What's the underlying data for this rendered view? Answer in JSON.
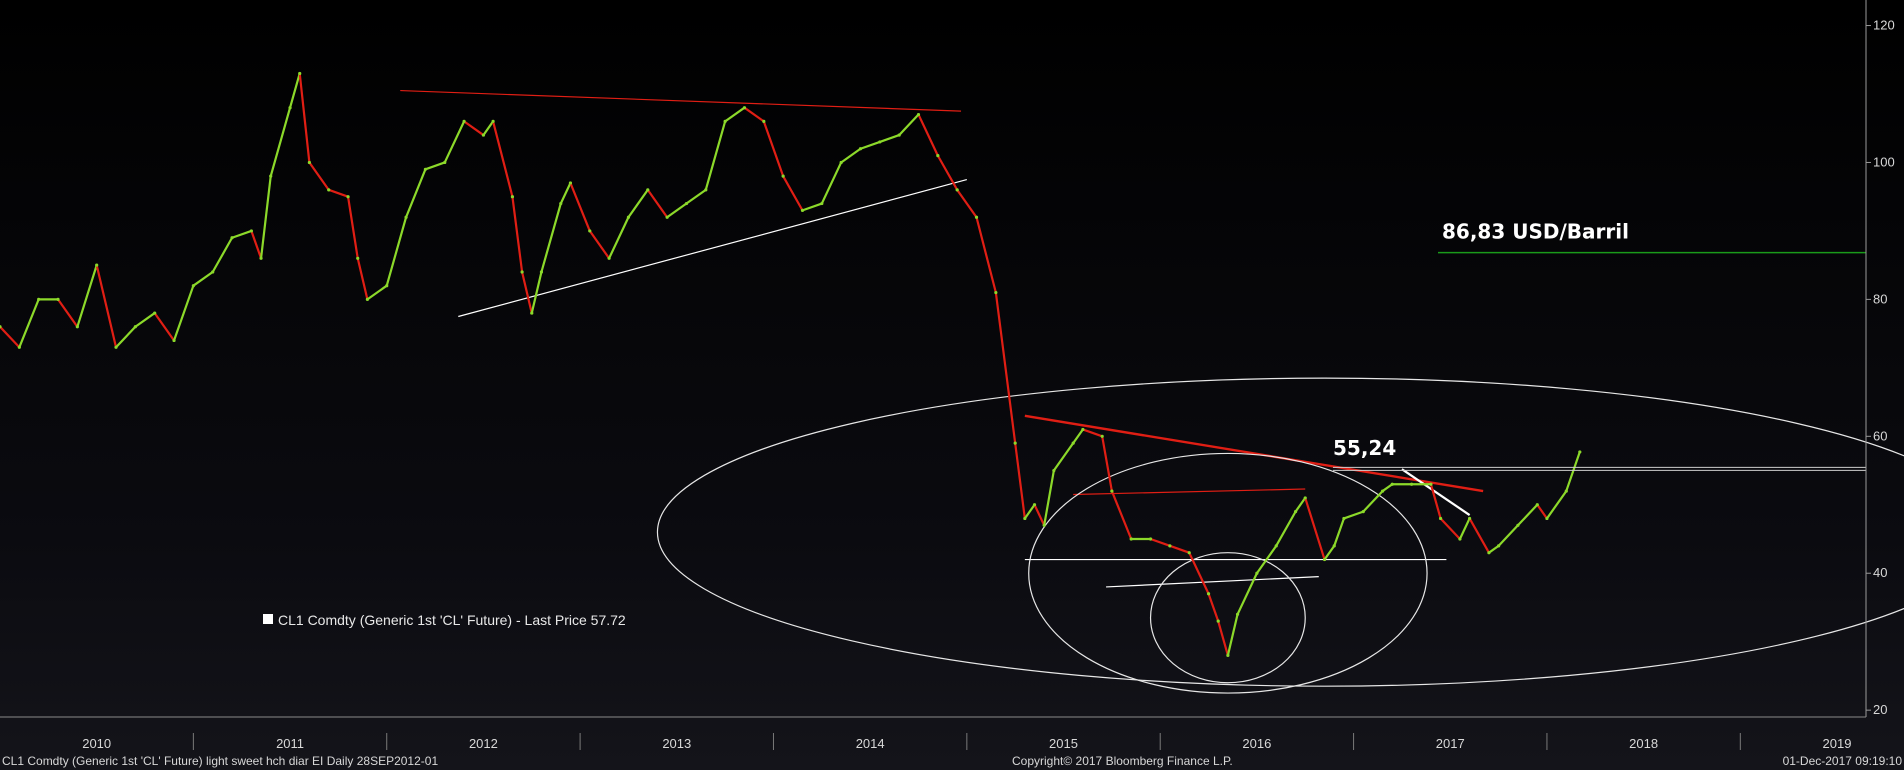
{
  "chart_data": {
    "type": "line",
    "title": "",
    "xlabel": "",
    "ylabel": "",
    "series": [
      {
        "name": "CL1 Comdty (Generic 1st 'CL' Future) - Last Price 57.72",
        "color": "#8cd92a",
        "down_color": "#e01e14",
        "points": [
          [
            2009.75,
            76
          ],
          [
            2009.85,
            73
          ],
          [
            2009.95,
            80
          ],
          [
            2010.05,
            80
          ],
          [
            2010.15,
            76
          ],
          [
            2010.25,
            85
          ],
          [
            2010.35,
            73
          ],
          [
            2010.45,
            76
          ],
          [
            2010.55,
            78
          ],
          [
            2010.65,
            74
          ],
          [
            2010.75,
            82
          ],
          [
            2010.85,
            84
          ],
          [
            2010.95,
            89
          ],
          [
            2011.05,
            90
          ],
          [
            2011.1,
            86
          ],
          [
            2011.15,
            98
          ],
          [
            2011.25,
            108
          ],
          [
            2011.3,
            113
          ],
          [
            2011.35,
            100
          ],
          [
            2011.45,
            96
          ],
          [
            2011.55,
            95
          ],
          [
            2011.6,
            86
          ],
          [
            2011.65,
            80
          ],
          [
            2011.75,
            82
          ],
          [
            2011.85,
            92
          ],
          [
            2011.95,
            99
          ],
          [
            2012.05,
            100
          ],
          [
            2012.15,
            106
          ],
          [
            2012.25,
            104
          ],
          [
            2012.3,
            106
          ],
          [
            2012.4,
            95
          ],
          [
            2012.45,
            84
          ],
          [
            2012.5,
            78
          ],
          [
            2012.55,
            84
          ],
          [
            2012.65,
            94
          ],
          [
            2012.7,
            97
          ],
          [
            2012.8,
            90
          ],
          [
            2012.9,
            86
          ],
          [
            2013.0,
            92
          ],
          [
            2013.1,
            96
          ],
          [
            2013.2,
            92
          ],
          [
            2013.3,
            94
          ],
          [
            2013.4,
            96
          ],
          [
            2013.5,
            106
          ],
          [
            2013.6,
            108
          ],
          [
            2013.7,
            106
          ],
          [
            2013.8,
            98
          ],
          [
            2013.9,
            93
          ],
          [
            2014.0,
            94
          ],
          [
            2014.1,
            100
          ],
          [
            2014.2,
            102
          ],
          [
            2014.3,
            103
          ],
          [
            2014.4,
            104
          ],
          [
            2014.5,
            107
          ],
          [
            2014.6,
            101
          ],
          [
            2014.7,
            96
          ],
          [
            2014.8,
            92
          ],
          [
            2014.9,
            81
          ],
          [
            2015.0,
            59
          ],
          [
            2015.05,
            48
          ],
          [
            2015.1,
            50
          ],
          [
            2015.15,
            47
          ],
          [
            2015.2,
            55
          ],
          [
            2015.3,
            59
          ],
          [
            2015.35,
            61
          ],
          [
            2015.45,
            60
          ],
          [
            2015.5,
            52
          ],
          [
            2015.6,
            45
          ],
          [
            2015.7,
            45
          ],
          [
            2015.8,
            44
          ],
          [
            2015.9,
            43
          ],
          [
            2016.0,
            37
          ],
          [
            2016.05,
            33
          ],
          [
            2016.1,
            28
          ],
          [
            2016.15,
            34
          ],
          [
            2016.25,
            40
          ],
          [
            2016.35,
            44
          ],
          [
            2016.45,
            49
          ],
          [
            2016.5,
            51
          ],
          [
            2016.6,
            42
          ],
          [
            2016.65,
            44
          ],
          [
            2016.7,
            48
          ],
          [
            2016.8,
            49
          ],
          [
            2016.9,
            52
          ],
          [
            2016.95,
            53
          ],
          [
            2017.05,
            53
          ],
          [
            2017.15,
            53
          ],
          [
            2017.2,
            48
          ],
          [
            2017.3,
            45
          ],
          [
            2017.35,
            48
          ],
          [
            2017.45,
            43
          ],
          [
            2017.5,
            44
          ],
          [
            2017.6,
            47
          ],
          [
            2017.7,
            50
          ],
          [
            2017.75,
            48
          ],
          [
            2017.85,
            52
          ],
          [
            2017.92,
            57.72
          ]
        ]
      }
    ],
    "x_ticks": [
      "2010",
      "2011",
      "2012",
      "2013",
      "2014",
      "2015",
      "2016",
      "2017",
      "2018",
      "2019"
    ],
    "y_ticks": [
      20,
      40,
      60,
      80,
      100,
      120
    ],
    "xlim": [
      2009.75,
      2019.4
    ],
    "ylim": [
      19,
      123
    ],
    "grid": false,
    "legend_position": "center-left",
    "legend": "CL1 Comdty (Generic 1st 'CL' Future) - Last Price 57.72",
    "annotations": {
      "target_label": "86,83 USD/Barril",
      "target_value": 86.83,
      "target_color": "#1a9a1a",
      "resistance_label": "55,24",
      "resistance_value": 55.24
    },
    "trendlines": {
      "red": [
        [
          [
            2011.82,
            110.5
          ],
          [
            2014.72,
            107.5
          ]
        ],
        [
          [
            2015.05,
            63
          ],
          [
            2017.42,
            52
          ]
        ],
        [
          [
            2015.3,
            51.5
          ],
          [
            2016.5,
            52.3
          ]
        ]
      ],
      "white": [
        [
          [
            2012.12,
            77.5
          ],
          [
            2014.75,
            97.5
          ]
        ],
        [
          [
            2015.05,
            42
          ],
          [
            2017.23,
            42
          ]
        ],
        [
          [
            2015.47,
            38
          ],
          [
            2016.57,
            39.5
          ]
        ],
        [
          [
            2017.0,
            55.2
          ],
          [
            2017.35,
            48.5
          ]
        ]
      ],
      "ellipses": [
        [
          2016.6,
          46,
          3.45,
          22.5
        ],
        [
          2016.1,
          40,
          1.03,
          17.5
        ],
        [
          2016.1,
          33.5,
          0.4,
          9.5
        ]
      ]
    }
  },
  "footer": {
    "left": "CL1 Comdty (Generic 1st 'CL' Future) light sweet hch diar EI  Daily 28SEP2012-01",
    "center": "Copyright© 2017 Bloomberg Finance L.P.",
    "right": "01-Dec-2017 09:19:10"
  }
}
